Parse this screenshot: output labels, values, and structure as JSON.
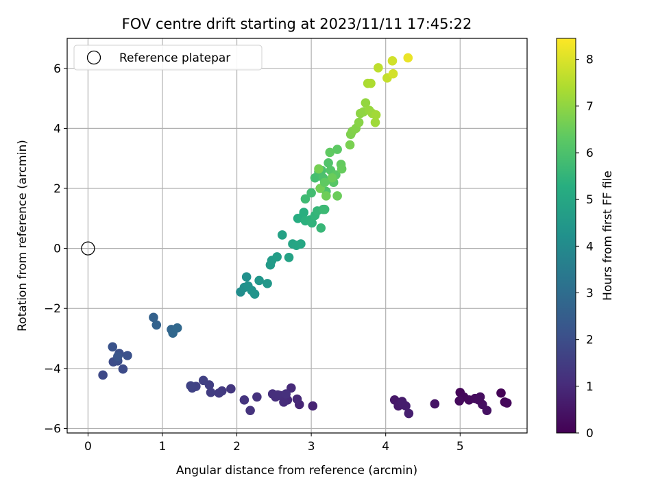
{
  "chart_data": {
    "type": "scatter",
    "title": "FOV centre drift starting at 2023/11/11 17:45:22",
    "xlabel": "Angular distance from reference (arcmin)",
    "ylabel": "Rotation from reference (arcmin)",
    "xlim": [
      -0.28,
      5.9
    ],
    "ylim": [
      -6.15,
      7.0
    ],
    "xticks": [
      0,
      1,
      2,
      3,
      4,
      5
    ],
    "yticks": [
      -6,
      -4,
      -2,
      0,
      2,
      4,
      6
    ],
    "xtick_labels": [
      "0",
      "1",
      "2",
      "3",
      "4",
      "5"
    ],
    "ytick_labels": [
      "−6",
      "−4",
      "−2",
      "0",
      "2",
      "4",
      "6"
    ],
    "grid": true,
    "legend": {
      "placement": "top-left",
      "entries": [
        "Reference platepar"
      ]
    },
    "reference_point": {
      "x": 0,
      "y": 0
    },
    "colorbar": {
      "label": "Hours from first FF file",
      "range": [
        0,
        8.45
      ],
      "ticks": [
        0,
        1,
        2,
        3,
        4,
        5,
        6,
        7,
        8
      ],
      "tick_labels": [
        "0",
        "1",
        "2",
        "3",
        "4",
        "5",
        "6",
        "7",
        "8"
      ],
      "colormap": "viridis"
    },
    "points": [
      [
        5.0,
        -4.8,
        0.1
      ],
      [
        5.05,
        -4.95,
        0.15
      ],
      [
        5.12,
        -5.05,
        0.2
      ],
      [
        5.2,
        -5.0,
        0.25
      ],
      [
        5.27,
        -4.95,
        0.3
      ],
      [
        5.3,
        -5.2,
        0.35
      ],
      [
        5.36,
        -5.4,
        0.38
      ],
      [
        5.55,
        -4.82,
        0.05
      ],
      [
        5.6,
        -5.12,
        0.12
      ],
      [
        5.63,
        -5.15,
        0.18
      ],
      [
        4.99,
        -5.08,
        0.22
      ],
      [
        5.25,
        -5.05,
        0.28
      ],
      [
        4.66,
        -5.18,
        0.45
      ],
      [
        4.12,
        -5.05,
        0.55
      ],
      [
        4.17,
        -5.25,
        0.6
      ],
      [
        4.22,
        -5.1,
        0.65
      ],
      [
        4.27,
        -5.25,
        0.7
      ],
      [
        4.31,
        -5.5,
        0.72
      ],
      [
        4.24,
        -5.2,
        0.68
      ],
      [
        3.02,
        -5.25,
        0.85
      ],
      [
        2.84,
        -5.2,
        0.9
      ],
      [
        2.81,
        -5.02,
        0.95
      ],
      [
        2.73,
        -4.65,
        1.0
      ],
      [
        2.68,
        -5.05,
        1.02
      ],
      [
        2.63,
        -5.12,
        1.05
      ],
      [
        2.58,
        -4.9,
        1.08
      ],
      [
        2.52,
        -4.95,
        1.1
      ],
      [
        2.48,
        -4.85,
        1.12
      ],
      [
        2.55,
        -4.88,
        1.15
      ],
      [
        2.27,
        -4.95,
        1.2
      ],
      [
        2.18,
        -5.4,
        1.22
      ],
      [
        2.1,
        -5.05,
        1.25
      ],
      [
        2.66,
        -4.85,
        1.18
      ],
      [
        1.92,
        -4.68,
        1.35
      ],
      [
        1.8,
        -4.75,
        1.4
      ],
      [
        1.76,
        -4.82,
        1.45
      ],
      [
        1.65,
        -4.8,
        1.5
      ],
      [
        1.63,
        -4.55,
        1.55
      ],
      [
        1.55,
        -4.4,
        1.6
      ],
      [
        1.45,
        -4.6,
        1.62
      ],
      [
        1.4,
        -4.65,
        1.65
      ],
      [
        1.38,
        -4.58,
        1.68
      ],
      [
        0.2,
        -4.22,
        1.85
      ],
      [
        0.47,
        -4.02,
        1.9
      ],
      [
        0.34,
        -3.78,
        1.95
      ],
      [
        0.4,
        -3.75,
        2.0
      ],
      [
        0.42,
        -3.5,
        2.05
      ],
      [
        0.53,
        -3.57,
        2.1
      ],
      [
        0.33,
        -3.28,
        2.15
      ],
      [
        0.4,
        -3.6,
        2.2
      ],
      [
        0.88,
        -2.3,
        2.6
      ],
      [
        0.92,
        -2.55,
        2.65
      ],
      [
        1.12,
        -2.7,
        2.75
      ],
      [
        1.14,
        -2.82,
        2.8
      ],
      [
        1.2,
        -2.65,
        2.85
      ],
      [
        2.05,
        -1.45,
        4.1
      ],
      [
        2.1,
        -1.3,
        4.15
      ],
      [
        2.13,
        -0.95,
        4.2
      ],
      [
        2.15,
        -1.25,
        4.25
      ],
      [
        2.2,
        -1.4,
        4.3
      ],
      [
        2.24,
        -1.52,
        4.35
      ],
      [
        2.3,
        -1.07,
        4.4
      ],
      [
        2.41,
        -1.17,
        4.45
      ],
      [
        2.45,
        -0.55,
        4.55
      ],
      [
        2.47,
        -0.4,
        4.6
      ],
      [
        2.54,
        -0.28,
        4.65
      ],
      [
        2.61,
        0.45,
        4.8
      ],
      [
        2.7,
        -0.3,
        4.85
      ],
      [
        2.75,
        0.15,
        4.9
      ],
      [
        2.8,
        0.1,
        4.95
      ],
      [
        2.86,
        0.15,
        5.0
      ],
      [
        2.82,
        1.0,
        5.2
      ],
      [
        2.88,
        1.05,
        5.25
      ],
      [
        2.9,
        1.2,
        5.3
      ],
      [
        2.92,
        0.92,
        5.35
      ],
      [
        2.98,
        0.95,
        5.4
      ],
      [
        3.01,
        0.85,
        5.45
      ],
      [
        3.05,
        1.1,
        5.5
      ],
      [
        3.08,
        1.25,
        5.55
      ],
      [
        3.13,
        0.68,
        5.6
      ],
      [
        3.16,
        1.3,
        5.65
      ],
      [
        3.18,
        1.3,
        5.7
      ],
      [
        2.92,
        1.65,
        5.75
      ],
      [
        3.0,
        1.85,
        5.8
      ],
      [
        3.05,
        2.35,
        5.85
      ],
      [
        3.1,
        2.55,
        5.9
      ],
      [
        3.14,
        2.6,
        5.95
      ],
      [
        3.16,
        2.35,
        6.0
      ],
      [
        3.2,
        1.9,
        6.05
      ],
      [
        3.23,
        2.85,
        6.1
      ],
      [
        3.26,
        2.6,
        6.15
      ],
      [
        3.3,
        2.2,
        6.2
      ],
      [
        3.33,
        2.45,
        6.25
      ],
      [
        3.35,
        3.3,
        6.3
      ],
      [
        3.25,
        3.2,
        6.35
      ],
      [
        3.4,
        2.8,
        6.4
      ],
      [
        3.41,
        2.65,
        6.45
      ],
      [
        3.35,
        1.75,
        6.5
      ],
      [
        3.2,
        1.75,
        6.55
      ],
      [
        3.12,
        2.0,
        6.6
      ],
      [
        3.1,
        2.65,
        6.65
      ],
      [
        3.28,
        2.35,
        6.5
      ],
      [
        3.18,
        2.2,
        6.35
      ],
      [
        3.52,
        3.45,
        6.7
      ],
      [
        3.53,
        3.8,
        6.75
      ],
      [
        3.55,
        3.9,
        6.8
      ],
      [
        3.6,
        4.0,
        6.85
      ],
      [
        3.64,
        4.2,
        6.9
      ],
      [
        3.66,
        4.5,
        6.95
      ],
      [
        3.7,
        4.55,
        7.0
      ],
      [
        3.73,
        4.85,
        7.05
      ],
      [
        3.78,
        4.6,
        7.1
      ],
      [
        3.82,
        4.5,
        7.15
      ],
      [
        3.86,
        4.2,
        7.2
      ],
      [
        3.87,
        4.45,
        7.25
      ],
      [
        3.76,
        5.5,
        7.35
      ],
      [
        3.8,
        5.5,
        7.4
      ],
      [
        3.9,
        6.02,
        7.6
      ],
      [
        4.02,
        5.68,
        7.7
      ],
      [
        4.09,
        6.25,
        7.85
      ],
      [
        4.1,
        5.82,
        7.9
      ],
      [
        4.3,
        6.35,
        8.2
      ]
    ]
  }
}
